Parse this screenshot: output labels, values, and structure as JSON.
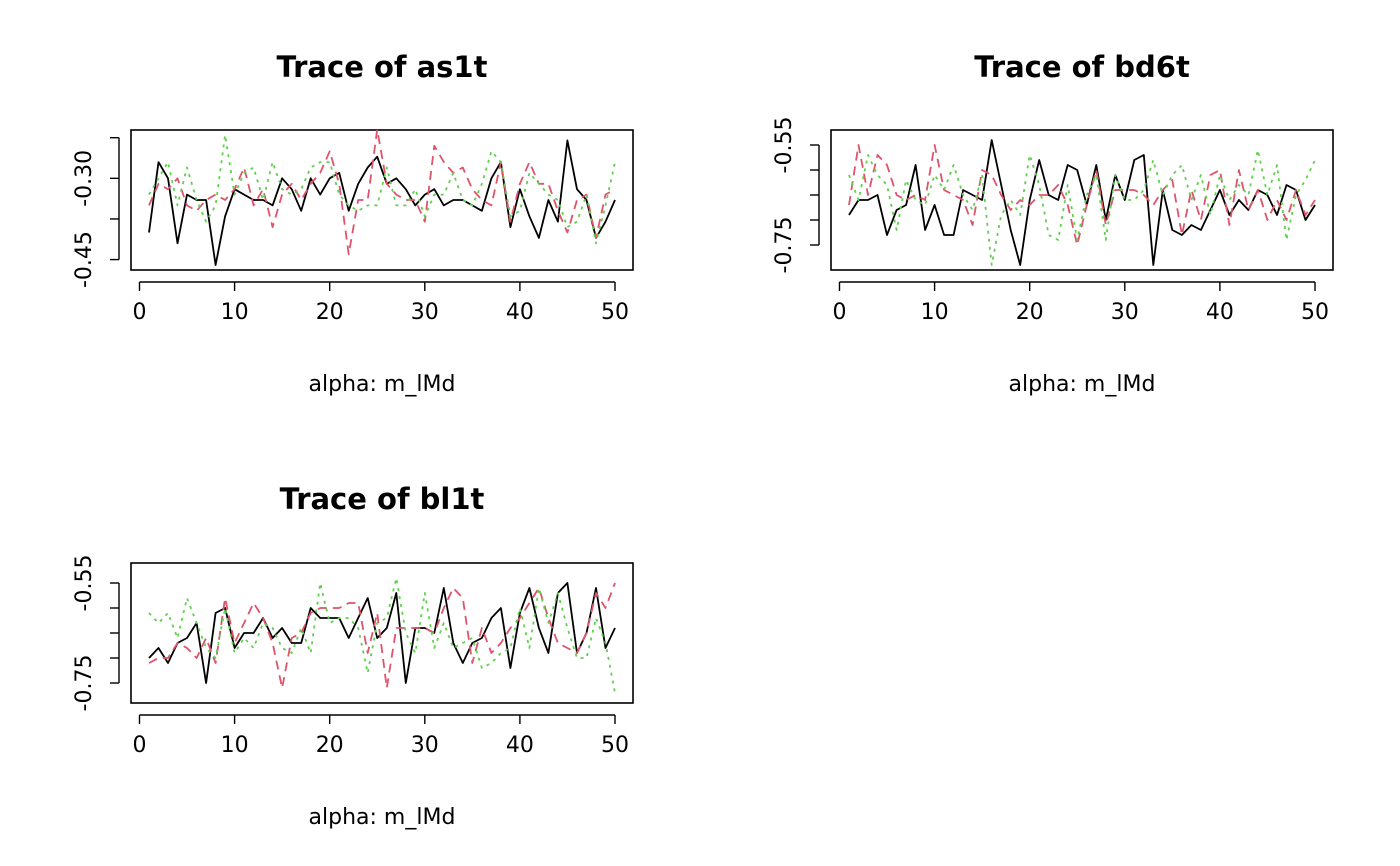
{
  "chart_data": [
    {
      "type": "line",
      "title": "Trace of as1t",
      "xlabel": "alpha: m_lMd",
      "ylabel": "",
      "xlim": [
        1,
        50
      ],
      "ylim": [
        -0.46,
        -0.22
      ],
      "xticks": [
        0,
        10,
        20,
        30,
        40,
        50
      ],
      "xtick_labels": [
        "0",
        "10",
        "20",
        "30",
        "40",
        "50"
      ],
      "yticks": [
        -0.225,
        -0.3,
        -0.375,
        -0.45
      ],
      "ytick_labels": [
        "",
        "-0.30",
        "",
        "-0.45"
      ],
      "series": [
        {
          "color": "#000000",
          "dash": "",
          "values": [
            -0.4,
            -0.27,
            -0.3,
            -0.42,
            -0.33,
            -0.34,
            -0.34,
            -0.46,
            -0.37,
            -0.32,
            -0.33,
            -0.34,
            -0.34,
            -0.35,
            -0.3,
            -0.32,
            -0.36,
            -0.3,
            -0.33,
            -0.3,
            -0.29,
            -0.36,
            -0.31,
            -0.28,
            -0.26,
            -0.31,
            -0.3,
            -0.32,
            -0.35,
            -0.33,
            -0.32,
            -0.35,
            -0.34,
            -0.34,
            -0.35,
            -0.36,
            -0.3,
            -0.27,
            -0.39,
            -0.32,
            -0.37,
            -0.41,
            -0.34,
            -0.38,
            -0.23,
            -0.32,
            -0.34,
            -0.41,
            -0.38,
            -0.34
          ]
        },
        {
          "color": "#DF536B",
          "dash": "9,6",
          "values": [
            -0.35,
            -0.31,
            -0.32,
            -0.3,
            -0.35,
            -0.36,
            -0.34,
            -0.33,
            -0.34,
            -0.32,
            -0.28,
            -0.35,
            -0.32,
            -0.39,
            -0.33,
            -0.31,
            -0.34,
            -0.31,
            -0.29,
            -0.25,
            -0.31,
            -0.44,
            -0.34,
            -0.34,
            -0.21,
            -0.31,
            -0.33,
            -0.34,
            -0.34,
            -0.38,
            -0.24,
            -0.27,
            -0.29,
            -0.28,
            -0.32,
            -0.34,
            -0.35,
            -0.27,
            -0.38,
            -0.31,
            -0.27,
            -0.31,
            -0.31,
            -0.36,
            -0.4,
            -0.34,
            -0.33,
            -0.41,
            -0.33,
            -0.32
          ]
        },
        {
          "color": "#61D04F",
          "dash": "3,5",
          "values": [
            -0.33,
            -0.3,
            -0.27,
            -0.35,
            -0.28,
            -0.34,
            -0.38,
            -0.35,
            -0.22,
            -0.33,
            -0.29,
            -0.28,
            -0.34,
            -0.27,
            -0.32,
            -0.33,
            -0.32,
            -0.28,
            -0.27,
            -0.27,
            -0.33,
            -0.35,
            -0.36,
            -0.35,
            -0.35,
            -0.28,
            -0.35,
            -0.35,
            -0.32,
            -0.37,
            -0.33,
            -0.33,
            -0.29,
            -0.34,
            -0.35,
            -0.31,
            -0.25,
            -0.27,
            -0.37,
            -0.36,
            -0.29,
            -0.31,
            -0.33,
            -0.34,
            -0.39,
            -0.38,
            -0.33,
            -0.42,
            -0.35,
            -0.27
          ]
        }
      ]
    },
    {
      "type": "line",
      "title": "Trace of bd6t",
      "xlabel": "alpha: m_lMd",
      "ylabel": "",
      "xlim": [
        1,
        50
      ],
      "ylim": [
        -0.79,
        -0.53
      ],
      "xticks": [
        0,
        10,
        20,
        30,
        40,
        50
      ],
      "xtick_labels": [
        "0",
        "10",
        "20",
        "30",
        "40",
        "50"
      ],
      "yticks": [
        -0.55,
        -0.6,
        -0.65,
        -0.7,
        -0.75
      ],
      "ytick_labels": [
        "-0.55",
        "",
        "",
        "",
        "-0.75"
      ],
      "series": [
        {
          "color": "#000000",
          "dash": "",
          "values": [
            -0.69,
            -0.66,
            -0.66,
            -0.65,
            -0.73,
            -0.68,
            -0.67,
            -0.59,
            -0.72,
            -0.67,
            -0.73,
            -0.73,
            -0.64,
            -0.65,
            -0.66,
            -0.54,
            -0.63,
            -0.72,
            -0.79,
            -0.66,
            -0.58,
            -0.65,
            -0.66,
            -0.59,
            -0.6,
            -0.67,
            -0.59,
            -0.7,
            -0.61,
            -0.66,
            -0.58,
            -0.57,
            -0.79,
            -0.64,
            -0.72,
            -0.73,
            -0.71,
            -0.72,
            -0.68,
            -0.64,
            -0.69,
            -0.66,
            -0.68,
            -0.64,
            -0.65,
            -0.69,
            -0.63,
            -0.64,
            -0.7,
            -0.67
          ]
        },
        {
          "color": "#DF536B",
          "dash": "9,6",
          "values": [
            -0.67,
            -0.55,
            -0.65,
            -0.57,
            -0.59,
            -0.65,
            -0.66,
            -0.65,
            -0.66,
            -0.55,
            -0.64,
            -0.65,
            -0.66,
            -0.71,
            -0.6,
            -0.61,
            -0.65,
            -0.68,
            -0.66,
            -0.67,
            -0.65,
            -0.65,
            -0.63,
            -0.67,
            -0.75,
            -0.67,
            -0.6,
            -0.71,
            -0.64,
            -0.64,
            -0.64,
            -0.65,
            -0.67,
            -0.64,
            -0.62,
            -0.73,
            -0.64,
            -0.7,
            -0.61,
            -0.6,
            -0.71,
            -0.6,
            -0.68,
            -0.64,
            -0.7,
            -0.66,
            -0.7,
            -0.64,
            -0.69,
            -0.66
          ]
        },
        {
          "color": "#61D04F",
          "dash": "3,5",
          "values": [
            -0.61,
            -0.66,
            -0.57,
            -0.61,
            -0.63,
            -0.72,
            -0.62,
            -0.66,
            -0.67,
            -0.61,
            -0.64,
            -0.59,
            -0.65,
            -0.68,
            -0.61,
            -0.79,
            -0.69,
            -0.66,
            -0.69,
            -0.57,
            -0.63,
            -0.73,
            -0.74,
            -0.63,
            -0.74,
            -0.65,
            -0.61,
            -0.74,
            -0.61,
            -0.66,
            -0.66,
            -0.64,
            -0.58,
            -0.65,
            -0.61,
            -0.59,
            -0.66,
            -0.61,
            -0.69,
            -0.61,
            -0.66,
            -0.63,
            -0.65,
            -0.56,
            -0.65,
            -0.59,
            -0.74,
            -0.65,
            -0.62,
            -0.58
          ]
        }
      ]
    },
    {
      "type": "line",
      "title": "Trace of bl1t",
      "xlabel": "alpha: m_lMd",
      "ylabel": "",
      "xlim": [
        1,
        50
      ],
      "ylim": [
        -0.78,
        -0.52
      ],
      "xticks": [
        0,
        10,
        20,
        30,
        40,
        50
      ],
      "xtick_labels": [
        "0",
        "10",
        "20",
        "30",
        "40",
        "50"
      ],
      "yticks": [
        -0.55,
        -0.6,
        -0.65,
        -0.7,
        -0.75
      ],
      "ytick_labels": [
        "-0.55",
        "",
        "",
        "",
        "-0.75"
      ],
      "series": [
        {
          "color": "#000000",
          "dash": "",
          "values": [
            -0.7,
            -0.68,
            -0.71,
            -0.67,
            -0.66,
            -0.63,
            -0.75,
            -0.61,
            -0.6,
            -0.68,
            -0.65,
            -0.65,
            -0.62,
            -0.66,
            -0.64,
            -0.67,
            -0.67,
            -0.6,
            -0.62,
            -0.62,
            -0.62,
            -0.66,
            -0.62,
            -0.58,
            -0.66,
            -0.64,
            -0.57,
            -0.75,
            -0.64,
            -0.64,
            -0.65,
            -0.56,
            -0.67,
            -0.71,
            -0.67,
            -0.66,
            -0.62,
            -0.6,
            -0.72,
            -0.61,
            -0.56,
            -0.64,
            -0.69,
            -0.57,
            -0.55,
            -0.69,
            -0.65,
            -0.56,
            -0.68,
            -0.64
          ]
        },
        {
          "color": "#DF536B",
          "dash": "9,6",
          "values": [
            -0.71,
            -0.7,
            -0.7,
            -0.67,
            -0.68,
            -0.7,
            -0.66,
            -0.71,
            -0.58,
            -0.67,
            -0.63,
            -0.59,
            -0.62,
            -0.67,
            -0.76,
            -0.66,
            -0.65,
            -0.61,
            -0.6,
            -0.6,
            -0.6,
            -0.59,
            -0.59,
            -0.69,
            -0.61,
            -0.76,
            -0.64,
            -0.64,
            -0.64,
            -0.64,
            -0.65,
            -0.6,
            -0.56,
            -0.58,
            -0.71,
            -0.64,
            -0.69,
            -0.67,
            -0.64,
            -0.62,
            -0.59,
            -0.56,
            -0.62,
            -0.67,
            -0.68,
            -0.69,
            -0.65,
            -0.57,
            -0.6,
            -0.55
          ]
        },
        {
          "color": "#61D04F",
          "dash": "3,5",
          "values": [
            -0.61,
            -0.63,
            -0.61,
            -0.66,
            -0.58,
            -0.63,
            -0.68,
            -0.7,
            -0.6,
            -0.69,
            -0.66,
            -0.68,
            -0.63,
            -0.64,
            -0.68,
            -0.69,
            -0.64,
            -0.69,
            -0.55,
            -0.63,
            -0.62,
            -0.62,
            -0.64,
            -0.73,
            -0.63,
            -0.62,
            -0.54,
            -0.65,
            -0.69,
            -0.57,
            -0.68,
            -0.63,
            -0.68,
            -0.67,
            -0.66,
            -0.72,
            -0.71,
            -0.69,
            -0.68,
            -0.6,
            -0.68,
            -0.56,
            -0.63,
            -0.57,
            -0.64,
            -0.7,
            -0.7,
            -0.62,
            -0.67,
            -0.77
          ]
        }
      ]
    }
  ]
}
